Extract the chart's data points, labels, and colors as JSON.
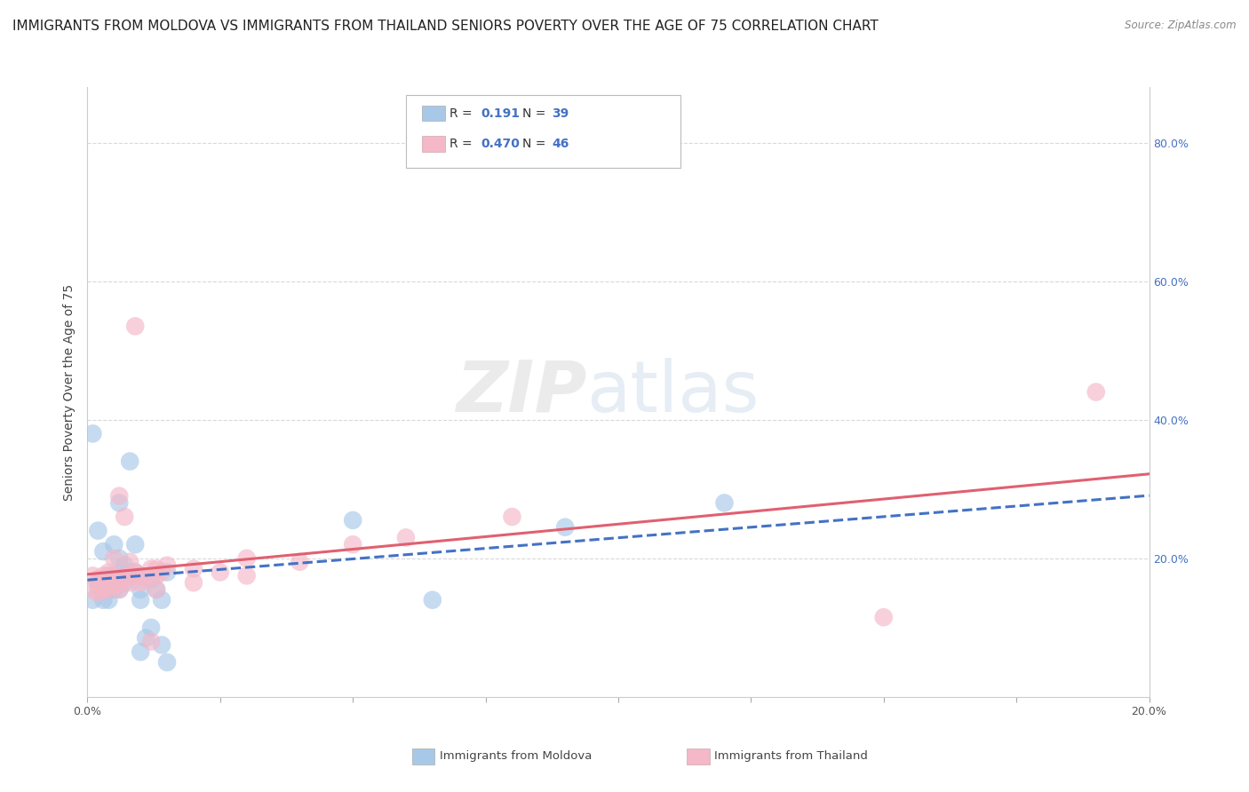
{
  "title": "IMMIGRANTS FROM MOLDOVA VS IMMIGRANTS FROM THAILAND SENIORS POVERTY OVER THE AGE OF 75 CORRELATION CHART",
  "source": "Source: ZipAtlas.com",
  "ylabel": "Seniors Poverty Over the Age of 75",
  "legend_entries": [
    {
      "label": "Immigrants from Moldova",
      "R": "0.191",
      "N": "39",
      "color": "#a8c8e8",
      "line_color": "#4472c4",
      "line_style": "dashed"
    },
    {
      "label": "Immigrants from Thailand",
      "R": "0.470",
      "N": "46",
      "color": "#f4b8c8",
      "line_color": "#e06070",
      "line_style": "solid"
    }
  ],
  "moldova_scatter": [
    [
      0.001,
      0.38
    ],
    [
      0.001,
      0.14
    ],
    [
      0.002,
      0.16
    ],
    [
      0.002,
      0.24
    ],
    [
      0.003,
      0.155
    ],
    [
      0.003,
      0.14
    ],
    [
      0.003,
      0.21
    ],
    [
      0.004,
      0.155
    ],
    [
      0.004,
      0.14
    ],
    [
      0.004,
      0.175
    ],
    [
      0.005,
      0.22
    ],
    [
      0.005,
      0.155
    ],
    [
      0.005,
      0.175
    ],
    [
      0.006,
      0.2
    ],
    [
      0.006,
      0.17
    ],
    [
      0.006,
      0.155
    ],
    [
      0.006,
      0.28
    ],
    [
      0.007,
      0.165
    ],
    [
      0.007,
      0.175
    ],
    [
      0.007,
      0.19
    ],
    [
      0.008,
      0.34
    ],
    [
      0.008,
      0.18
    ],
    [
      0.009,
      0.22
    ],
    [
      0.009,
      0.18
    ],
    [
      0.01,
      0.155
    ],
    [
      0.01,
      0.065
    ],
    [
      0.01,
      0.14
    ],
    [
      0.011,
      0.085
    ],
    [
      0.012,
      0.17
    ],
    [
      0.012,
      0.1
    ],
    [
      0.013,
      0.155
    ],
    [
      0.014,
      0.14
    ],
    [
      0.014,
      0.075
    ],
    [
      0.015,
      0.18
    ],
    [
      0.015,
      0.05
    ],
    [
      0.05,
      0.255
    ],
    [
      0.065,
      0.14
    ],
    [
      0.09,
      0.245
    ],
    [
      0.12,
      0.28
    ]
  ],
  "thailand_scatter": [
    [
      0.001,
      0.155
    ],
    [
      0.001,
      0.175
    ],
    [
      0.002,
      0.15
    ],
    [
      0.002,
      0.165
    ],
    [
      0.002,
      0.17
    ],
    [
      0.003,
      0.155
    ],
    [
      0.003,
      0.155
    ],
    [
      0.003,
      0.175
    ],
    [
      0.004,
      0.155
    ],
    [
      0.004,
      0.165
    ],
    [
      0.004,
      0.18
    ],
    [
      0.005,
      0.16
    ],
    [
      0.005,
      0.2
    ],
    [
      0.005,
      0.175
    ],
    [
      0.006,
      0.165
    ],
    [
      0.006,
      0.29
    ],
    [
      0.006,
      0.155
    ],
    [
      0.007,
      0.17
    ],
    [
      0.007,
      0.175
    ],
    [
      0.007,
      0.26
    ],
    [
      0.008,
      0.195
    ],
    [
      0.008,
      0.165
    ],
    [
      0.008,
      0.175
    ],
    [
      0.009,
      0.18
    ],
    [
      0.009,
      0.535
    ],
    [
      0.01,
      0.165
    ],
    [
      0.01,
      0.175
    ],
    [
      0.011,
      0.17
    ],
    [
      0.012,
      0.185
    ],
    [
      0.012,
      0.08
    ],
    [
      0.013,
      0.155
    ],
    [
      0.013,
      0.185
    ],
    [
      0.013,
      0.175
    ],
    [
      0.014,
      0.18
    ],
    [
      0.015,
      0.19
    ],
    [
      0.02,
      0.185
    ],
    [
      0.02,
      0.165
    ],
    [
      0.025,
      0.18
    ],
    [
      0.03,
      0.2
    ],
    [
      0.03,
      0.175
    ],
    [
      0.04,
      0.195
    ],
    [
      0.05,
      0.22
    ],
    [
      0.06,
      0.23
    ],
    [
      0.08,
      0.26
    ],
    [
      0.15,
      0.115
    ],
    [
      0.19,
      0.44
    ]
  ],
  "xlim": [
    0,
    0.2
  ],
  "ylim": [
    0,
    0.88
  ],
  "background_color": "#ffffff",
  "grid_color": "#d0d0d0",
  "title_fontsize": 11,
  "axis_label_fontsize": 10,
  "right_yticks": [
    0.2,
    0.4,
    0.6,
    0.8
  ],
  "right_ytick_labels": [
    "20.0%",
    "40.0%",
    "60.0%",
    "80.0%"
  ]
}
